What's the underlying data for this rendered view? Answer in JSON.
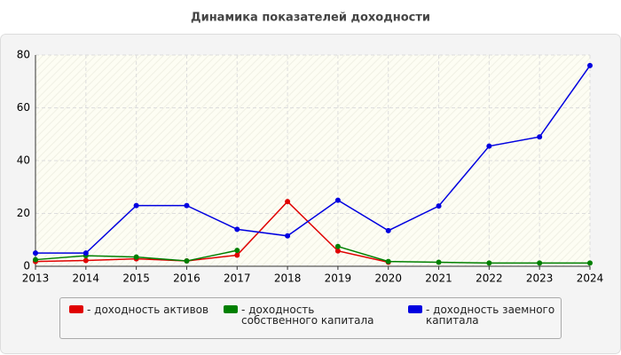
{
  "chart_data": {
    "type": "line",
    "title": "Динамика показателей доходности",
    "categories": [
      "2013",
      "2014",
      "2015",
      "2016",
      "2017",
      "2018",
      "2019",
      "2020",
      "2021",
      "2022",
      "2023",
      "2024"
    ],
    "series": [
      {
        "name": "- доходность активов",
        "color": "#e00000",
        "values": [
          1.8,
          2.2,
          2.8,
          2.0,
          4.2,
          24.5,
          5.8,
          1.5,
          null,
          null,
          null,
          null
        ]
      },
      {
        "name": "- доходность собственного капитала",
        "color": "#008000",
        "values": [
          2.5,
          4.0,
          3.5,
          2.0,
          6.0,
          null,
          7.5,
          1.8,
          1.5,
          1.2,
          1.2,
          1.2
        ]
      },
      {
        "name": "- доходность заемного капитала",
        "color": "#0000e0",
        "values": [
          5,
          5,
          23,
          23,
          14,
          11.5,
          25,
          13.5,
          22.8,
          45.5,
          49,
          76
        ]
      }
    ],
    "ylim": [
      0,
      80
    ],
    "yticks": [
      0,
      20,
      40,
      60,
      80
    ],
    "grid": true
  }
}
